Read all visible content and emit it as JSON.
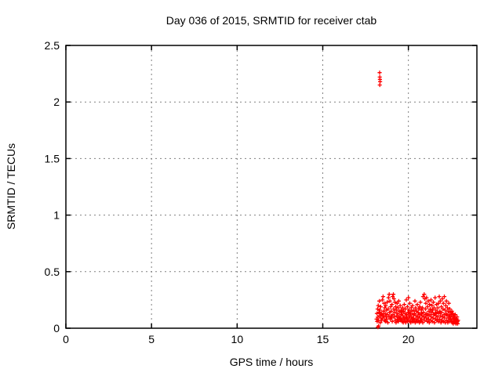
{
  "chart_data": {
    "type": "scatter",
    "title": "Day 036 of 2015, SRMTID for receiver ctab",
    "xlabel": "GPS time / hours",
    "ylabel": "SRMTID / TECUs",
    "xlim": [
      0,
      24
    ],
    "ylim": [
      0,
      2.5
    ],
    "xticks": [
      0,
      5,
      10,
      15,
      20
    ],
    "xtick_labels": [
      "0",
      "5",
      "10",
      "15",
      "20"
    ],
    "yticks": [
      0,
      0.5,
      1,
      1.5,
      2,
      2.5
    ],
    "ytick_labels": [
      "0",
      "0.5",
      "1",
      "1.5",
      "2",
      "2.5"
    ],
    "grid": true,
    "grid_style": "dashed",
    "grid_color": "#808080",
    "legend": "off",
    "border_color": "#000000",
    "background_color": "#ffffff",
    "series": [
      {
        "name": "srmtid",
        "marker": "plus",
        "color": "#ff0000",
        "points": [
          [
            18.14,
            0.08
          ],
          [
            18.16,
            0.13
          ],
          [
            18.18,
            0.06
          ],
          [
            18.2,
            0.17
          ],
          [
            18.22,
            0.1
          ],
          [
            18.24,
            0.2
          ],
          [
            18.26,
            0.07
          ],
          [
            18.28,
            0.14
          ],
          [
            18.3,
            0.24
          ],
          [
            18.32,
            0.11
          ],
          [
            18.34,
            0.16
          ],
          [
            18.36,
            0.05
          ],
          [
            18.38,
            0.19
          ],
          [
            18.4,
            0.09
          ],
          [
            18.42,
            0.13
          ],
          [
            18.44,
            0.07
          ],
          [
            18.46,
            0.12
          ],
          [
            18.48,
            0.25
          ],
          [
            18.5,
            0.09
          ],
          [
            18.52,
            0.28
          ],
          [
            18.54,
            0.15
          ],
          [
            18.56,
            0.11
          ],
          [
            18.58,
            0.22
          ],
          [
            18.6,
            0.07
          ],
          [
            18.62,
            0.18
          ],
          [
            18.64,
            0.13
          ],
          [
            18.66,
            0.06
          ],
          [
            18.68,
            0.2
          ],
          [
            18.7,
            0.1
          ],
          [
            18.72,
            0.16
          ],
          [
            18.74,
            0.08
          ],
          [
            18.76,
            0.23
          ],
          [
            18.78,
            0.12
          ],
          [
            18.8,
            0.05
          ],
          [
            18.82,
            0.17
          ],
          [
            18.84,
            0.27
          ],
          [
            18.86,
            0.1
          ],
          [
            18.88,
            0.3
          ],
          [
            18.9,
            0.14
          ],
          [
            18.92,
            0.24
          ],
          [
            18.94,
            0.08
          ],
          [
            18.96,
            0.19
          ],
          [
            18.98,
            0.11
          ],
          [
            19.0,
            0.15
          ],
          [
            19.02,
            0.09
          ],
          [
            19.04,
            0.21
          ],
          [
            19.06,
            0.06
          ],
          [
            19.08,
            0.28
          ],
          [
            19.1,
            0.12
          ],
          [
            19.12,
            0.3
          ],
          [
            19.14,
            0.17
          ],
          [
            19.16,
            0.26
          ],
          [
            19.18,
            0.1
          ],
          [
            19.2,
            0.14
          ],
          [
            19.22,
            0.23
          ],
          [
            19.24,
            0.07
          ],
          [
            19.26,
            0.19
          ],
          [
            19.28,
            0.05
          ],
          [
            19.3,
            0.16
          ],
          [
            19.32,
            0.11
          ],
          [
            19.34,
            0.22
          ],
          [
            19.36,
            0.08
          ],
          [
            19.38,
            0.13
          ],
          [
            19.4,
            0.18
          ],
          [
            19.42,
            0.06
          ],
          [
            19.44,
            0.24
          ],
          [
            19.46,
            0.1
          ],
          [
            19.48,
            0.15
          ],
          [
            19.5,
            0.09
          ],
          [
            19.52,
            0.2
          ],
          [
            19.54,
            0.07
          ],
          [
            19.56,
            0.12
          ],
          [
            19.58,
            0.16
          ],
          [
            19.6,
            0.08
          ],
          [
            19.62,
            0.14
          ],
          [
            19.64,
            0.06
          ],
          [
            19.66,
            0.18
          ],
          [
            19.68,
            0.11
          ],
          [
            19.7,
            0.05
          ],
          [
            19.72,
            0.15
          ],
          [
            19.74,
            0.09
          ],
          [
            19.76,
            0.21
          ],
          [
            19.78,
            0.07
          ],
          [
            19.8,
            0.13
          ],
          [
            19.82,
            0.17
          ],
          [
            19.84,
            0.05
          ],
          [
            19.86,
            0.1
          ],
          [
            19.88,
            0.25
          ],
          [
            19.9,
            0.12
          ],
          [
            19.92,
            0.08
          ],
          [
            19.94,
            0.19
          ],
          [
            19.96,
            0.06
          ],
          [
            19.98,
            0.14
          ],
          [
            20.0,
            0.27
          ],
          [
            20.02,
            0.09
          ],
          [
            20.04,
            0.16
          ],
          [
            20.06,
            0.11
          ],
          [
            20.08,
            0.22
          ],
          [
            20.1,
            0.07
          ],
          [
            20.12,
            0.13
          ],
          [
            20.14,
            0.05
          ],
          [
            20.16,
            0.18
          ],
          [
            20.18,
            0.1
          ],
          [
            20.2,
            0.15
          ],
          [
            20.22,
            0.08
          ],
          [
            20.24,
            0.2
          ],
          [
            20.26,
            0.06
          ],
          [
            20.28,
            0.12
          ],
          [
            20.3,
            0.09
          ],
          [
            20.32,
            0.16
          ],
          [
            20.34,
            0.07
          ],
          [
            20.36,
            0.13
          ],
          [
            20.38,
            0.24
          ],
          [
            20.4,
            0.05
          ],
          [
            20.42,
            0.18
          ],
          [
            20.44,
            0.11
          ],
          [
            20.46,
            0.08
          ],
          [
            20.48,
            0.15
          ],
          [
            20.5,
            0.06
          ],
          [
            20.52,
            0.21
          ],
          [
            20.54,
            0.1
          ],
          [
            20.56,
            0.14
          ],
          [
            20.58,
            0.07
          ],
          [
            20.6,
            0.17
          ],
          [
            20.62,
            0.12
          ],
          [
            20.64,
            0.05
          ],
          [
            20.66,
            0.19
          ],
          [
            20.68,
            0.09
          ],
          [
            20.7,
            0.23
          ],
          [
            20.72,
            0.06
          ],
          [
            20.74,
            0.13
          ],
          [
            20.76,
            0.16
          ],
          [
            20.78,
            0.08
          ],
          [
            20.8,
            0.11
          ],
          [
            20.82,
            0.18
          ],
          [
            20.84,
            0.05
          ],
          [
            20.86,
            0.28
          ],
          [
            20.88,
            0.14
          ],
          [
            20.9,
            0.1
          ],
          [
            20.92,
            0.3
          ],
          [
            20.94,
            0.07
          ],
          [
            20.96,
            0.26
          ],
          [
            20.98,
            0.12
          ],
          [
            21.0,
            0.17
          ],
          [
            21.02,
            0.22
          ],
          [
            21.04,
            0.09
          ],
          [
            21.06,
            0.27
          ],
          [
            21.08,
            0.13
          ],
          [
            21.1,
            0.06
          ],
          [
            21.12,
            0.19
          ],
          [
            21.14,
            0.11
          ],
          [
            21.16,
            0.24
          ],
          [
            21.18,
            0.08
          ],
          [
            21.2,
            0.15
          ],
          [
            21.22,
            0.05
          ],
          [
            21.24,
            0.21
          ],
          [
            21.26,
            0.12
          ],
          [
            21.28,
            0.17
          ],
          [
            21.3,
            0.07
          ],
          [
            21.32,
            0.25
          ],
          [
            21.34,
            0.1
          ],
          [
            21.36,
            0.14
          ],
          [
            21.38,
            0.2
          ],
          [
            21.4,
            0.06
          ],
          [
            21.42,
            0.16
          ],
          [
            21.44,
            0.09
          ],
          [
            21.46,
            0.23
          ],
          [
            21.48,
            0.12
          ],
          [
            21.5,
            0.18
          ],
          [
            21.52,
            0.05
          ],
          [
            21.54,
            0.13
          ],
          [
            21.56,
            0.27
          ],
          [
            21.58,
            0.08
          ],
          [
            21.6,
            0.16
          ],
          [
            21.62,
            0.11
          ],
          [
            21.64,
            0.21
          ],
          [
            21.66,
            0.07
          ],
          [
            21.68,
            0.14
          ],
          [
            21.7,
            0.1
          ],
          [
            21.72,
            0.18
          ],
          [
            21.74,
            0.06
          ],
          [
            21.76,
            0.22
          ],
          [
            21.78,
            0.13
          ],
          [
            21.8,
            0.28
          ],
          [
            21.82,
            0.08
          ],
          [
            21.84,
            0.15
          ],
          [
            21.86,
            0.24
          ],
          [
            21.88,
            0.11
          ],
          [
            21.9,
            0.05
          ],
          [
            21.92,
            0.19
          ],
          [
            21.94,
            0.14
          ],
          [
            21.96,
            0.07
          ],
          [
            21.98,
            0.26
          ],
          [
            22.0,
            0.1
          ],
          [
            22.02,
            0.17
          ],
          [
            22.04,
            0.22
          ],
          [
            22.06,
            0.06
          ],
          [
            22.08,
            0.12
          ],
          [
            22.1,
            0.28
          ],
          [
            22.12,
            0.09
          ],
          [
            22.14,
            0.16
          ],
          [
            22.16,
            0.05
          ],
          [
            22.18,
            0.2
          ],
          [
            22.2,
            0.13
          ],
          [
            22.22,
            0.24
          ],
          [
            22.24,
            0.07
          ],
          [
            22.26,
            0.11
          ],
          [
            22.28,
            0.18
          ],
          [
            22.3,
            0.05
          ],
          [
            22.32,
            0.15
          ],
          [
            22.34,
            0.09
          ],
          [
            22.36,
            0.22
          ],
          [
            22.38,
            0.12
          ],
          [
            22.4,
            0.06
          ],
          [
            22.42,
            0.17
          ],
          [
            22.44,
            0.1
          ],
          [
            22.46,
            0.14
          ],
          [
            22.48,
            0.08
          ],
          [
            22.5,
            0.12
          ],
          [
            22.52,
            0.07
          ],
          [
            22.54,
            0.15
          ],
          [
            22.56,
            0.05
          ],
          [
            22.58,
            0.1
          ],
          [
            22.6,
            0.13
          ],
          [
            22.62,
            0.04
          ],
          [
            22.64,
            0.08
          ],
          [
            22.66,
            0.11
          ],
          [
            22.68,
            0.06
          ],
          [
            22.7,
            0.09
          ],
          [
            22.72,
            0.05
          ],
          [
            22.74,
            0.12
          ],
          [
            22.76,
            0.07
          ],
          [
            22.78,
            0.04
          ],
          [
            22.8,
            0.08
          ],
          [
            22.82,
            0.05
          ],
          [
            22.84,
            0.1
          ],
          [
            22.86,
            0.06
          ],
          [
            22.88,
            0.04
          ],
          [
            22.9,
            0.07
          ],
          [
            18.22,
            0.01
          ],
          [
            18.26,
            0.02
          ],
          [
            18.32,
            2.26
          ],
          [
            18.33,
            2.22
          ],
          [
            18.34,
            2.2
          ],
          [
            18.35,
            2.18
          ],
          [
            18.33,
            2.15
          ]
        ]
      }
    ]
  }
}
